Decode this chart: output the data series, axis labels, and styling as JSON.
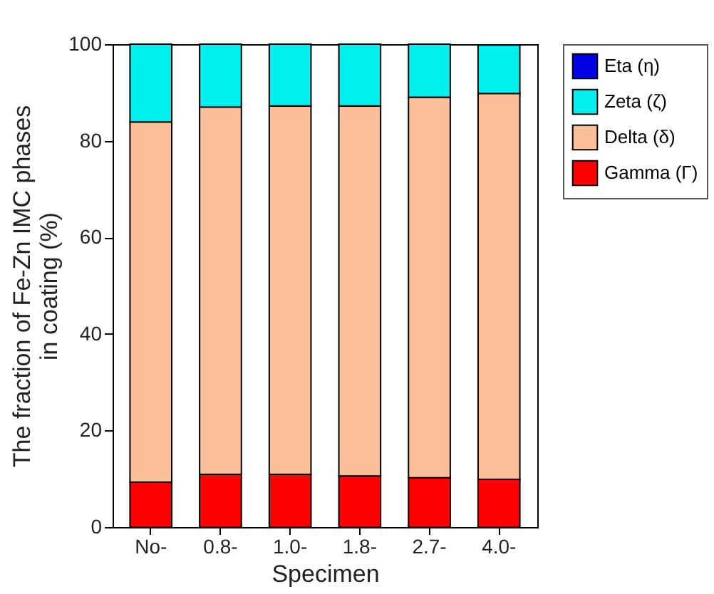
{
  "chart_data": {
    "type": "bar",
    "stacked": true,
    "xlabel": "Specimen",
    "ylabel": "The fraction of Fe-Zn IMC phases\nin coating (%)",
    "categories": [
      "No-",
      "0.8-",
      "1.0-",
      "1.8-",
      "2.7-",
      "4.0-"
    ],
    "series": [
      {
        "name": "Gamma (Γ)",
        "color": "#ff0000",
        "values": [
          9.3,
          10.9,
          10.9,
          10.6,
          10.2,
          9.9
        ]
      },
      {
        "name": "Delta (δ)",
        "color": "#fbbf9a",
        "values": [
          74.6,
          76.1,
          76.3,
          76.6,
          78.8,
          79.9
        ]
      },
      {
        "name": "Zeta (ζ)",
        "color": "#00f0f0",
        "values": [
          16.1,
          13.0,
          12.8,
          12.8,
          11.0,
          10.0
        ]
      },
      {
        "name": "Eta (η)",
        "color": "#0000e0",
        "values": [
          null,
          null,
          null,
          null,
          null,
          null
        ]
      }
    ],
    "ylim": [
      0,
      100
    ],
    "yticks": [
      0,
      20,
      40,
      60,
      80,
      100
    ],
    "legend": "right"
  }
}
